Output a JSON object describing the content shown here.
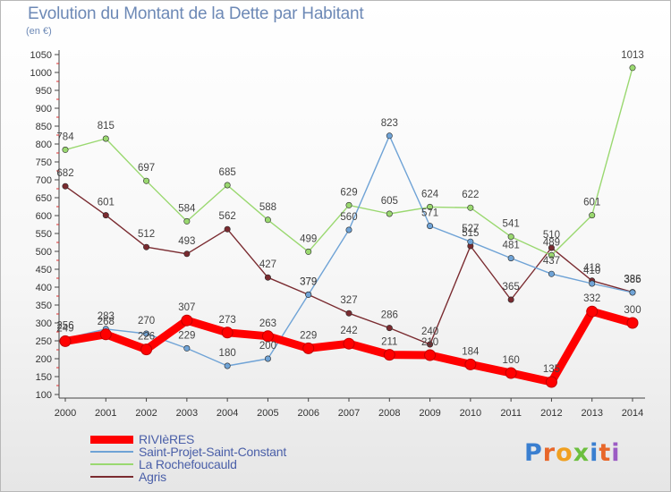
{
  "chart_data": {
    "type": "line",
    "title": "Evolution du Montant de la Dette par Habitant",
    "subtitle": "(en €)",
    "xlabel": "",
    "ylabel": "",
    "x": [
      "2000",
      "2001",
      "2002",
      "2003",
      "2004",
      "2005",
      "2006",
      "2007",
      "2008",
      "2009",
      "2010",
      "2011",
      "2012",
      "2013",
      "2014"
    ],
    "ylim": [
      100,
      1050
    ],
    "yticks": [
      "100",
      "150",
      "200",
      "250",
      "300",
      "350",
      "400",
      "450",
      "500",
      "550",
      "600",
      "650",
      "700",
      "750",
      "800",
      "850",
      "900",
      "950",
      "1000",
      "1050"
    ],
    "grid": false,
    "legend_placement": "bottom-left",
    "series": [
      {
        "name": "RIVIèRES",
        "color": "#ff0000",
        "values": [
          249,
          268,
          226,
          307,
          273,
          263,
          229,
          242,
          211,
          210,
          184,
          160,
          135,
          332,
          300
        ],
        "labels": [
          "249",
          "268",
          "226",
          "307",
          "273",
          "263",
          "229",
          "242",
          "211",
          "210",
          "184",
          "160",
          "135",
          "332",
          "300"
        ]
      },
      {
        "name": "Saint-Projet-Saint-Constant",
        "color": "#6fa3d6",
        "values": [
          256,
          283,
          270,
          229,
          180,
          200,
          379,
          560,
          823,
          571,
          527,
          481,
          437,
          410,
          385
        ],
        "labels": [
          "256",
          "283",
          "270",
          "229",
          "180",
          "200",
          "379",
          "560",
          "823",
          "571",
          "527",
          "481",
          "437",
          "410",
          "385"
        ]
      },
      {
        "name": "La Rochefoucauld",
        "color": "#9ad870",
        "values": [
          784,
          815,
          697,
          584,
          685,
          588,
          499,
          629,
          605,
          624,
          622,
          541,
          489,
          601,
          1013
        ],
        "labels": [
          "784",
          "815",
          "697",
          "584",
          "685",
          "588",
          "499",
          "629",
          "605",
          "624",
          "622",
          "541",
          "489",
          "601",
          "1013"
        ]
      },
      {
        "name": "Agris",
        "color": "#7a2b30",
        "values": [
          682,
          601,
          512,
          493,
          562,
          427,
          379,
          327,
          286,
          240,
          515,
          365,
          510,
          418,
          386
        ],
        "labels": [
          "682",
          "601",
          "512",
          "493",
          "562",
          "427",
          "379",
          "327",
          "286",
          "240",
          "515",
          "365",
          "510",
          "418",
          "386"
        ]
      }
    ]
  },
  "logo": {
    "letters": [
      "P",
      "r",
      "o",
      "x",
      "i",
      "t",
      "i"
    ],
    "colors": [
      "#3a7fd0",
      "#e8672a",
      "#f0a020",
      "#6cbf3e",
      "#3a7fd0",
      "#e8672a",
      "#9c5cc4"
    ]
  }
}
